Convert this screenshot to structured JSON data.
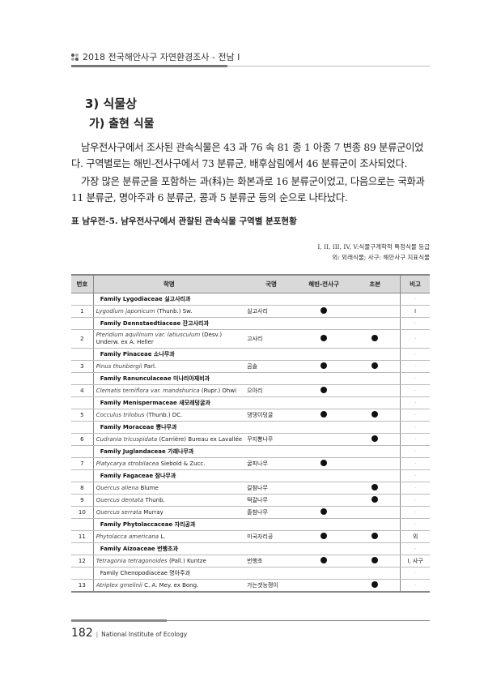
{
  "header": {
    "title": "2018 전국해안사구 자연환경조사 - 전남 I"
  },
  "section": {
    "h3": "3) 식물상",
    "h4": "가) 출현 식물"
  },
  "paragraphs": [
    "남우전사구에서 조사된 관속식물은 43 과 76 속 81 종 1 아종 7 변종 89 분류군이었다. 구역별로는 해빈-전사구에서 73 분류군, 배후삼림에서 46 분류군이 조사되었다.",
    "가장 많은 분류군을 포함하는 과(科)는 화본과로 16 분류군이었고, 다음으로는 국화과 11 분류군, 명아주과 6 분류군, 콩과 5 분류군 등의 순으로 나타났다."
  ],
  "table": {
    "caption": "표 남우전-5. 남우전사구에서 관찰된 관속식물 구역별 분포현황",
    "notes": [
      "I, II, III, IV, V:식물구계학적 특정식물 등급",
      "외: 외래식물; 사구: 해안사구 지표식물"
    ],
    "headers": [
      "번호",
      "학명",
      "국명",
      "해빈-전사구",
      "초본",
      "비고"
    ],
    "rows": [
      {
        "type": "family",
        "name": "Family Lygodiaceae 실고사리과"
      },
      {
        "no": "1",
        "genus": "Lygodium japonicum",
        "author": "(Thunb.) Sw.",
        "kor": "실고사리",
        "beach": true,
        "herb": false,
        "note": "I"
      },
      {
        "type": "family",
        "name": "Family Dennstaedtiaceae 잔고사리과"
      },
      {
        "no": "2",
        "genus": "Pteridium aquilinum var. latiusculum",
        "author": "(Desv.) Underw. ex A. Heller",
        "kor": "고사리",
        "beach": true,
        "herb": true,
        "note": "·"
      },
      {
        "type": "family",
        "name": "Family Pinaceae 소나무과"
      },
      {
        "no": "3",
        "genus": "Pinus thunbergii",
        "author": "Parl.",
        "kor": "곰솔",
        "beach": true,
        "herb": true,
        "note": "·"
      },
      {
        "type": "family",
        "name": "Family Ranunculaceae 미나리아재비과"
      },
      {
        "no": "4",
        "genus": "Clematis terniflora var. mandshurica",
        "author": "(Rupr.) Ohwi",
        "kor": "으아리",
        "beach": true,
        "herb": false,
        "note": "·"
      },
      {
        "type": "family",
        "name": "Family Menispermaceae 새모래덩굴과"
      },
      {
        "no": "5",
        "genus": "Cocculus trilobus",
        "author": "(Thunb.) DC.",
        "kor": "댕댕이덩굴",
        "beach": true,
        "herb": true,
        "note": "·"
      },
      {
        "type": "family",
        "name": "Family Moraceae 뽕나무과"
      },
      {
        "no": "6",
        "genus": "Cudrania tricuspidata",
        "author": "(Carrière) Bureau ex Lavallée",
        "kor": "꾸지뽕나무",
        "beach": false,
        "herb": true,
        "note": "·"
      },
      {
        "type": "family",
        "name": "Family Juglandaceae 가래나무과"
      },
      {
        "no": "7",
        "genus": "Platycarya strobilacea",
        "author": "Siebold & Zucc.",
        "kor": "굴피나무",
        "beach": true,
        "herb": false,
        "note": "·"
      },
      {
        "type": "family",
        "name": "Family Fagaceae 참나무과"
      },
      {
        "no": "8",
        "genus": "Quercus aliena",
        "author": "Blume",
        "kor": "갈참나무",
        "beach": false,
        "herb": true,
        "note": "·"
      },
      {
        "no": "9",
        "genus": "Quercus dentata",
        "author": "Thunb.",
        "kor": "떡갈나무",
        "beach": false,
        "herb": true,
        "note": "·"
      },
      {
        "no": "10",
        "genus": "Quercus serrata",
        "author": "Murray",
        "kor": "졸참나무",
        "beach": true,
        "herb": false,
        "note": "·"
      },
      {
        "type": "family",
        "name": "Family Phytolaccaceae 자리공과"
      },
      {
        "no": "11",
        "genus": "Phytolacca americana",
        "author": "L.",
        "kor": "미국자리공",
        "beach": true,
        "herb": true,
        "note": "외"
      },
      {
        "type": "family",
        "name": "Family Aizoaceae 번행초과"
      },
      {
        "no": "12",
        "genus": "Tetragonia tetragonoides",
        "author": "(Pall.) Kuntze",
        "kor": "번행초",
        "beach": true,
        "herb": true,
        "note": "I, 사구"
      },
      {
        "type": "family",
        "name": "Family Chenopodiaceae 명아주과",
        "plain": true
      },
      {
        "no": "13",
        "genus": "Atriplex gmelinii",
        "author": "C. A. Mey. ex Bong.",
        "kor": "가는갯능쟁이",
        "beach": false,
        "herb": true,
        "note": "·"
      }
    ]
  },
  "footer": {
    "page": "182",
    "separator": "|",
    "org": "National Institute of Ecology"
  }
}
